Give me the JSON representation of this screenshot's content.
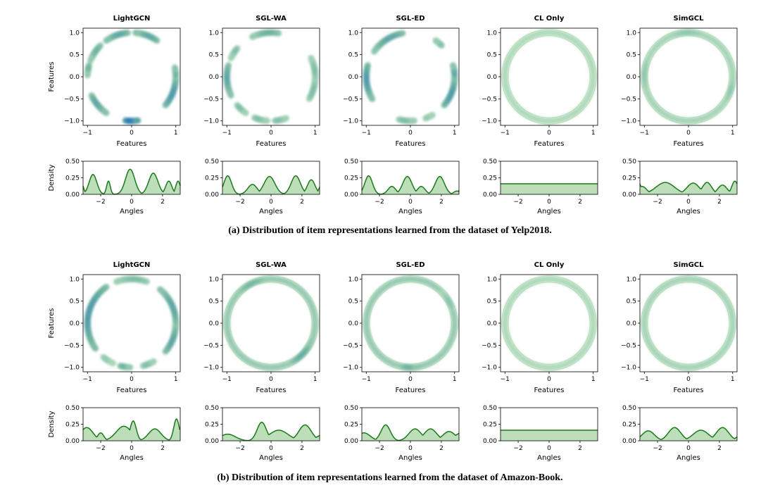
{
  "figure": {
    "row_captions": [
      "(a) Distribution of item representations learned from the dataset of Yelp2018.",
      "(b) Distribution of item representations learned from the dataset of Amazon-Book."
    ],
    "colors": {
      "line": "#1a7a1a",
      "fill": "#a6d3a0",
      "ring_light": "#c6e8c4",
      "ring_mid": "#6fb3a0",
      "ring_dark": "#2b7bba"
    }
  },
  "chart_data": [
    {
      "dataset": "Yelp2018",
      "methods": [
        {
          "title": "LightGCN",
          "type": "heatmap",
          "xlabel": "Features",
          "ylabel": "Features",
          "xlim": [
            -1.1,
            1.1
          ],
          "ylim": [
            -1.1,
            1.1
          ],
          "xticks": [
            "−1",
            "0",
            "1"
          ],
          "yticks": [
            "1.0",
            "0.5",
            "0.0",
            "−0.5",
            "−1.0"
          ],
          "ring_segments": [
            [
              95,
              125,
              0.6,
              7
            ],
            [
              135,
              158,
              0.5,
              5
            ],
            [
              165,
              178,
              0.5,
              4
            ],
            [
              205,
              235,
              0.6,
              7
            ],
            [
              262,
              278,
              1.0,
              10
            ],
            [
              320,
              360,
              0.7,
              7
            ],
            [
              0,
              12,
              0.5,
              5
            ],
            [
              55,
              85,
              0.6,
              6
            ]
          ],
          "density": {
            "type": "area",
            "xlabel": "Angles",
            "ylabel": "Density",
            "xlim": [
              -3.14,
              3.14
            ],
            "ylim": [
              0,
              0.5
            ],
            "xticks": [
              "−2",
              "0",
              "2"
            ],
            "yticks": [
              "0.50",
              "0.25",
              "0.00"
            ],
            "peaks": [
              [
                -2.5,
                0.3,
                0.25
              ],
              [
                -1.5,
                0.2,
                0.12
              ],
              [
                -0.1,
                0.38,
                0.3
              ],
              [
                1.4,
                0.32,
                0.3
              ],
              [
                2.4,
                0.2,
                0.2
              ],
              [
                3.0,
                0.2,
                0.15
              ]
            ]
          }
        },
        {
          "title": "SGL-WA",
          "type": "heatmap",
          "xlabel": "Features",
          "ylabel": "Features",
          "xlim": [
            -1.1,
            1.1
          ],
          "ylim": [
            -1.1,
            1.1
          ],
          "xticks": [
            "−1",
            "0",
            "1"
          ],
          "yticks": [
            "1.0",
            "0.5",
            "0.0",
            "−0.5",
            "−1.0"
          ],
          "ring_segments": [
            [
              80,
              115,
              0.5,
              7
            ],
            [
              140,
              155,
              0.4,
              3
            ],
            [
              165,
              205,
              0.6,
              7
            ],
            [
              220,
              235,
              0.4,
              4
            ],
            [
              248,
              265,
              0.4,
              5
            ],
            [
              275,
              290,
              0.4,
              4
            ],
            [
              330,
              360,
              0.4,
              6
            ],
            [
              0,
              25,
              0.4,
              6
            ]
          ],
          "density": {
            "type": "area",
            "xlabel": "Angles",
            "ylabel": "Density",
            "xlim": [
              -3.14,
              3.14
            ],
            "ylim": [
              0,
              0.5
            ],
            "xticks": [
              "−2",
              "0",
              "2"
            ],
            "yticks": [
              "0.50",
              "0.25",
              "0.00"
            ],
            "peaks": [
              [
                -2.8,
                0.28,
                0.25
              ],
              [
                -1.2,
                0.15,
                0.3
              ],
              [
                -0.1,
                0.27,
                0.35
              ],
              [
                1.6,
                0.28,
                0.3
              ],
              [
                2.6,
                0.22,
                0.25
              ]
            ]
          }
        },
        {
          "title": "SGL-ED",
          "type": "heatmap",
          "xlabel": "Features",
          "ylabel": "Features",
          "xlim": [
            -1.1,
            1.1
          ],
          "ylim": [
            -1.1,
            1.1
          ],
          "xticks": [
            "−1",
            "0",
            "1"
          ],
          "yticks": [
            "1.0",
            "0.5",
            "0.0",
            "−0.5",
            "−1.0"
          ],
          "ring_segments": [
            [
              100,
              145,
              0.6,
              9
            ],
            [
              165,
              210,
              0.7,
              8
            ],
            [
              255,
              275,
              0.4,
              5
            ],
            [
              290,
              300,
              0.3,
              3
            ],
            [
              320,
              360,
              0.7,
              8
            ],
            [
              0,
              15,
              0.6,
              6
            ],
            [
              45,
              55,
              0.4,
              3
            ]
          ],
          "density": {
            "type": "area",
            "xlabel": "Angles",
            "ylabel": "Density",
            "xlim": [
              -3.14,
              3.14
            ],
            "ylim": [
              0,
              0.5
            ],
            "xticks": [
              "−2",
              "0",
              "2"
            ],
            "yticks": [
              "0.50",
              "0.25",
              "0.00"
            ],
            "peaks": [
              [
                -2.7,
                0.28,
                0.25
              ],
              [
                -1.2,
                0.12,
                0.25
              ],
              [
                -0.2,
                0.27,
                0.3
              ],
              [
                0.7,
                0.12,
                0.25
              ],
              [
                1.9,
                0.27,
                0.3
              ],
              [
                3.0,
                0.05,
                0.2
              ]
            ]
          }
        },
        {
          "title": "CL Only",
          "type": "heatmap",
          "xlabel": "Features",
          "ylabel": "Features",
          "xlim": [
            -1.1,
            1.1
          ],
          "ylim": [
            -1.1,
            1.1
          ],
          "xticks": [
            "−1",
            "0",
            "1"
          ],
          "yticks": [
            "1.0",
            "0.5",
            "0.0",
            "−0.5",
            "−1.0"
          ],
          "ring_segments": [
            [
              0,
              360,
              0.15,
              0
            ]
          ],
          "density": {
            "type": "area",
            "xlabel": "Angles",
            "ylabel": "Density",
            "xlim": [
              -3.14,
              3.14
            ],
            "ylim": [
              0,
              0.5
            ],
            "xticks": [
              "−2",
              "0",
              "2"
            ],
            "yticks": [
              "0.50",
              "0.25",
              "0.00"
            ],
            "peaks": [
              [
                0,
                0.16,
                99
              ]
            ]
          }
        },
        {
          "title": "SimGCL",
          "type": "heatmap",
          "xlabel": "Features",
          "ylabel": "Features",
          "xlim": [
            -1.1,
            1.1
          ],
          "ylim": [
            -1.1,
            1.1
          ],
          "xticks": [
            "−1",
            "0",
            "1"
          ],
          "yticks": [
            "1.0",
            "0.5",
            "0.0",
            "−0.5",
            "−1.0"
          ],
          "ring_segments": [
            [
              0,
              360,
              0.2,
              0
            ],
            [
              75,
              115,
              0.3,
              6
            ],
            [
              160,
              200,
              0.3,
              6
            ],
            [
              330,
              360,
              0.3,
              6
            ]
          ],
          "density": {
            "type": "area",
            "xlabel": "Angles",
            "ylabel": "Density",
            "xlim": [
              -3.14,
              3.14
            ],
            "ylim": [
              0,
              0.5
            ],
            "xticks": [
              "−2",
              "0",
              "2"
            ],
            "yticks": [
              "0.50",
              "0.25",
              "0.00"
            ],
            "peaks": [
              [
                -3.0,
                0.12,
                0.3
              ],
              [
                -1.5,
                0.18,
                0.6
              ],
              [
                0.3,
                0.17,
                0.4
              ],
              [
                1.2,
                0.18,
                0.3
              ],
              [
                2.2,
                0.14,
                0.3
              ],
              [
                3.0,
                0.2,
                0.2
              ]
            ]
          }
        }
      ]
    },
    {
      "dataset": "Amazon-Book",
      "methods": [
        {
          "title": "LightGCN",
          "type": "heatmap",
          "xlabel": "Features",
          "ylabel": "Features",
          "xlim": [
            -1.1,
            1.1
          ],
          "ylim": [
            -1.1,
            1.1
          ],
          "xticks": [
            "−1",
            "0",
            "1"
          ],
          "yticks": [
            "1.0",
            "0.5",
            "0.0",
            "−0.5",
            "−1.0"
          ],
          "ring_segments": [
            [
              70,
              110,
              0.4,
              5
            ],
            [
              125,
              215,
              0.7,
              10
            ],
            [
              230,
              245,
              0.3,
              4
            ],
            [
              255,
              268,
              0.5,
              4
            ],
            [
              285,
              300,
              0.4,
              3
            ],
            [
              320,
              360,
              0.6,
              9
            ],
            [
              0,
              50,
              0.6,
              8
            ]
          ],
          "density": {
            "type": "area",
            "xlabel": "Angles",
            "ylabel": "Density",
            "xlim": [
              -3.14,
              3.14
            ],
            "ylim": [
              0,
              0.5
            ],
            "xticks": [
              "−2",
              "0",
              "2"
            ],
            "yticks": [
              "0.50",
              "0.25",
              "0.00"
            ],
            "peaks": [
              [
                -2.9,
                0.2,
                0.4
              ],
              [
                -2.0,
                0.12,
                0.2
              ],
              [
                -0.5,
                0.22,
                0.5
              ],
              [
                0.1,
                0.3,
                0.2
              ],
              [
                1.5,
                0.18,
                0.4
              ],
              [
                2.9,
                0.33,
                0.18
              ]
            ]
          }
        },
        {
          "title": "SGL-WA",
          "type": "heatmap",
          "xlabel": "Features",
          "ylabel": "Features",
          "xlim": [
            -1.1,
            1.1
          ],
          "ylim": [
            -1.1,
            1.1
          ],
          "xticks": [
            "−1",
            "0",
            "1"
          ],
          "yticks": [
            "1.0",
            "0.5",
            "0.0",
            "−0.5",
            "−1.0"
          ],
          "ring_segments": [
            [
              0,
              360,
              0.3,
              0
            ],
            [
              100,
              140,
              0.45,
              8
            ],
            [
              300,
              335,
              0.55,
              7
            ]
          ],
          "density": {
            "type": "area",
            "xlabel": "Angles",
            "ylabel": "Density",
            "xlim": [
              -3.14,
              3.14
            ],
            "ylim": [
              0,
              0.5
            ],
            "xticks": [
              "−2",
              "0",
              "2"
            ],
            "yticks": [
              "0.50",
              "0.25",
              "0.00"
            ],
            "peaks": [
              [
                -2.8,
                0.1,
                0.5
              ],
              [
                -0.6,
                0.28,
                0.3
              ],
              [
                0.5,
                0.16,
                0.6
              ],
              [
                2.2,
                0.24,
                0.4
              ]
            ]
          }
        },
        {
          "title": "SGL-ED",
          "type": "heatmap",
          "xlabel": "Features",
          "ylabel": "Features",
          "xlim": [
            -1.1,
            1.1
          ],
          "ylim": [
            -1.1,
            1.1
          ],
          "xticks": [
            "−1",
            "0",
            "1"
          ],
          "yticks": [
            "1.0",
            "0.5",
            "0.0",
            "−0.5",
            "−1.0"
          ],
          "ring_segments": [
            [
              0,
              360,
              0.3,
              0
            ],
            [
              260,
              280,
              0.5,
              6
            ],
            [
              20,
              45,
              0.35,
              6
            ]
          ],
          "density": {
            "type": "area",
            "xlabel": "Angles",
            "ylabel": "Density",
            "xlim": [
              -3.14,
              3.14
            ],
            "ylim": [
              0,
              0.5
            ],
            "xticks": [
              "−2",
              "0",
              "2"
            ],
            "yticks": [
              "0.50",
              "0.25",
              "0.00"
            ],
            "peaks": [
              [
                -3.0,
                0.12,
                0.4
              ],
              [
                -1.6,
                0.24,
                0.3
              ],
              [
                0.3,
                0.18,
                0.4
              ],
              [
                1.3,
                0.18,
                0.4
              ],
              [
                2.5,
                0.14,
                0.4
              ]
            ]
          }
        },
        {
          "title": "CL Only",
          "type": "heatmap",
          "xlabel": "Features",
          "ylabel": "Features",
          "xlim": [
            -1.1,
            1.1
          ],
          "ylim": [
            -1.1,
            1.1
          ],
          "xticks": [
            "−1",
            "0",
            "1"
          ],
          "yticks": [
            "1.0",
            "0.5",
            "0.0",
            "−0.5",
            "−1.0"
          ],
          "ring_segments": [
            [
              0,
              360,
              0.15,
              0
            ]
          ],
          "density": {
            "type": "area",
            "xlabel": "Angles",
            "ylabel": "Density",
            "xlim": [
              -3.14,
              3.14
            ],
            "ylim": [
              0,
              0.5
            ],
            "xticks": [
              "−2",
              "0",
              "2"
            ],
            "yticks": [
              "0.50",
              "0.25",
              "0.00"
            ],
            "peaks": [
              [
                0,
                0.16,
                99
              ]
            ]
          }
        },
        {
          "title": "SimGCL",
          "type": "heatmap",
          "xlabel": "Features",
          "ylabel": "Features",
          "xlim": [
            -1.1,
            1.1
          ],
          "ylim": [
            -1.1,
            1.1
          ],
          "xticks": [
            "−1",
            "0",
            "1"
          ],
          "yticks": [
            "1.0",
            "0.5",
            "0.0",
            "−0.5",
            "−1.0"
          ],
          "ring_segments": [
            [
              0,
              360,
              0.2,
              0
            ]
          ],
          "density": {
            "type": "area",
            "xlabel": "Angles",
            "ylabel": "Density",
            "xlim": [
              -3.14,
              3.14
            ],
            "ylim": [
              0,
              0.5
            ],
            "xticks": [
              "−2",
              "0",
              "2"
            ],
            "yticks": [
              "0.50",
              "0.25",
              "0.00"
            ],
            "peaks": [
              [
                -2.6,
                0.15,
                0.4
              ],
              [
                -0.9,
                0.2,
                0.4
              ],
              [
                0.8,
                0.16,
                0.5
              ],
              [
                2.2,
                0.2,
                0.4
              ]
            ]
          }
        }
      ]
    }
  ]
}
